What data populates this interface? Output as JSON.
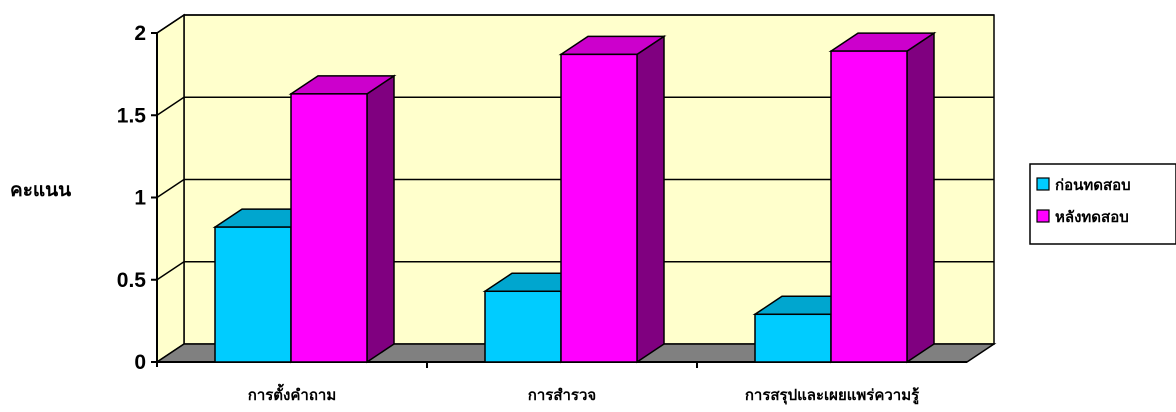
{
  "chart_data": {
    "type": "bar",
    "style": "3d-clustered",
    "ylabel": "คะแนน",
    "xlabel": "",
    "ylim": [
      0,
      2
    ],
    "yticks": [
      "0",
      "0.5",
      "1",
      "1.5",
      "2"
    ],
    "grid": true,
    "legend_position": "right",
    "categories": [
      "การตั้งคำถาม",
      "การสำรวจ",
      "การสรุปและเผยแพร่ความรู้"
    ],
    "series": [
      {
        "name": "ก่อนทดสอบ",
        "values": [
          0.82,
          0.43,
          0.29
        ]
      },
      {
        "name": "หลังทดสอบ",
        "values": [
          1.63,
          1.87,
          1.89
        ]
      }
    ]
  },
  "colors": {
    "wall": "#ffffcc",
    "floor": "#808080",
    "series": [
      {
        "front": "#00ccff",
        "top": "#00a6cf",
        "side": "#008ab0"
      },
      {
        "front": "#ff00ff",
        "top": "#cc00cc",
        "side": "#800080"
      }
    ]
  }
}
